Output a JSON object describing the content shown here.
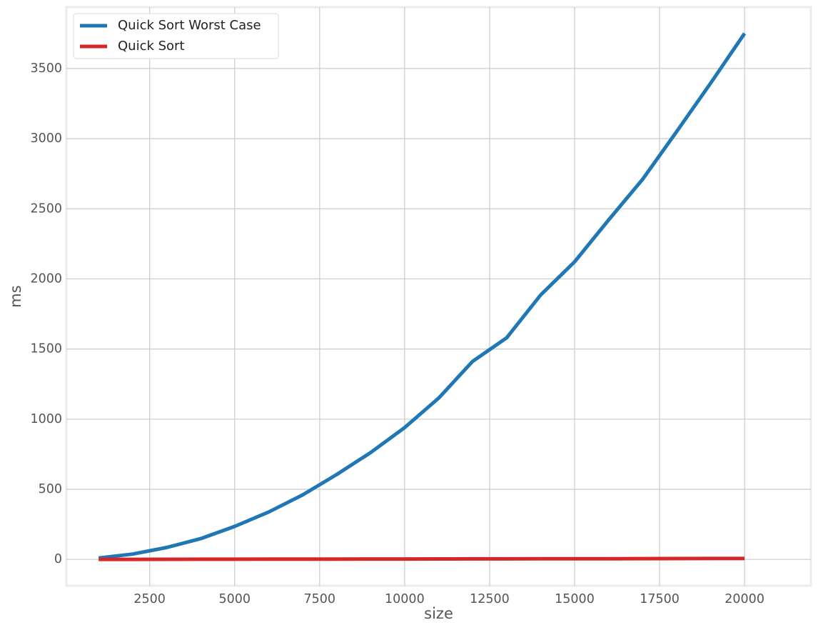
{
  "chart_data": {
    "type": "line",
    "title": "",
    "xlabel": "size",
    "ylabel": "ms",
    "xlim": [
      50,
      21950
    ],
    "ylim": [
      -187.5,
      3937.5
    ],
    "xticks": [
      2500,
      5000,
      7500,
      10000,
      12500,
      15000,
      17500,
      20000
    ],
    "yticks": [
      0,
      500,
      1000,
      1500,
      2000,
      2500,
      3000,
      3500
    ],
    "grid": true,
    "legend_position": "top-left",
    "x": [
      1000,
      2000,
      3000,
      4000,
      5000,
      6000,
      7000,
      8000,
      9000,
      10000,
      11000,
      12000,
      13000,
      14000,
      15000,
      16000,
      17000,
      18000,
      19000,
      20000
    ],
    "series": [
      {
        "name": "Quick Sort Worst Case",
        "color": "#1f77b4",
        "values": [
          10,
          38,
          85,
          148,
          235,
          338,
          460,
          605,
          762,
          940,
          1150,
          1412,
          1580,
          1885,
          2122,
          2420,
          2710,
          3050,
          3395,
          3750
        ]
      },
      {
        "name": "Quick Sort",
        "color": "#d62728",
        "values": [
          0.3,
          0.6,
          0.9,
          1.2,
          1.5,
          1.8,
          2.1,
          2.4,
          2.8,
          3.1,
          3.4,
          3.8,
          4.1,
          4.4,
          4.8,
          5.1,
          5.5,
          5.9,
          6.3,
          6.7
        ]
      }
    ]
  }
}
